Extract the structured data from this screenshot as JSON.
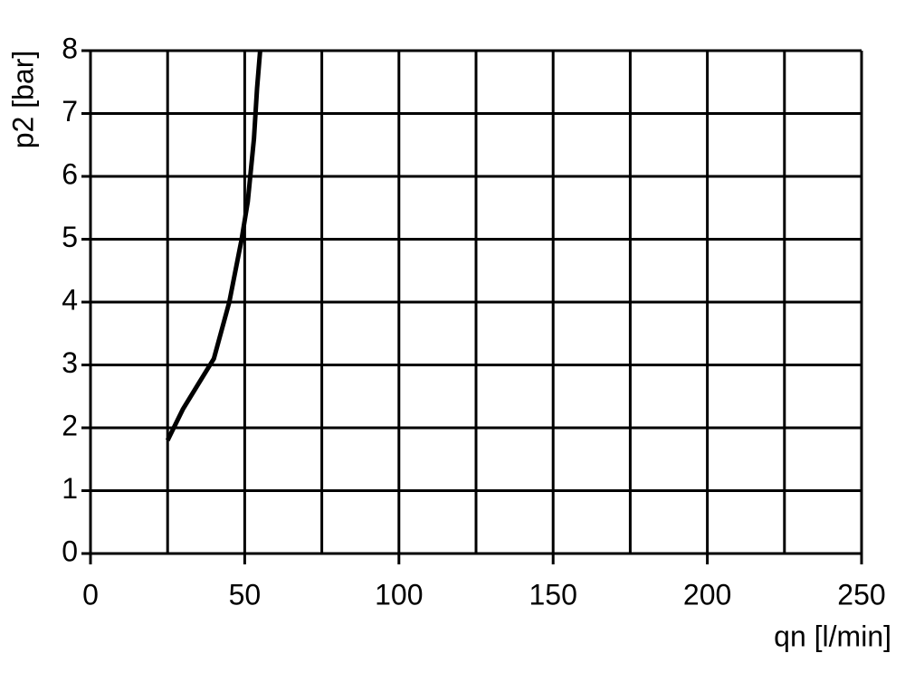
{
  "chart_data": {
    "type": "line",
    "xlabel": "qn [l/min]",
    "ylabel": "p2 [bar]",
    "xlim": [
      0,
      250
    ],
    "ylim": [
      0,
      8
    ],
    "xticks": [
      0,
      50,
      100,
      150,
      200,
      250
    ],
    "xminor_ticks": [
      25,
      75,
      125,
      175,
      225
    ],
    "yticks": [
      0,
      1,
      2,
      3,
      4,
      5,
      6,
      7,
      8
    ],
    "grid": true,
    "series": [
      {
        "color": "#000000",
        "x": [
          25,
          30,
          35,
          40,
          45,
          49,
          51,
          53,
          54,
          55
        ],
        "values": [
          1.8,
          2.3,
          2.7,
          3.1,
          4.0,
          5.0,
          5.6,
          6.6,
          7.4,
          8.0
        ]
      }
    ]
  }
}
